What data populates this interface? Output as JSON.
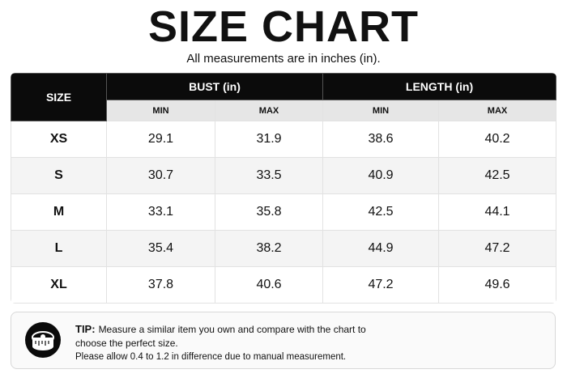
{
  "header": {
    "title": "SIZE CHART",
    "subtitle": "All measurements are in inches (in)."
  },
  "table": {
    "size_header": "SIZE",
    "groups": [
      "BUST (in)",
      "LENGTH (in)"
    ],
    "subheaders": [
      "MIN",
      "MAX",
      "MIN",
      "MAX"
    ],
    "rows": [
      [
        "XS",
        "29.1",
        "31.9",
        "38.6",
        "40.2"
      ],
      [
        "S",
        "30.7",
        "33.5",
        "40.9",
        "42.5"
      ],
      [
        "M",
        "33.1",
        "35.8",
        "42.5",
        "44.1"
      ],
      [
        "L",
        "35.4",
        "38.2",
        "44.9",
        "47.2"
      ],
      [
        "XL",
        "37.8",
        "40.6",
        "47.2",
        "49.6"
      ]
    ]
  },
  "tip": {
    "label": "TIP:",
    "text": "Measure a similar item you own and compare with the chart to choose the perfect size.",
    "note": "Please allow 0.4 to 1.2 in difference due to manual measurement."
  }
}
